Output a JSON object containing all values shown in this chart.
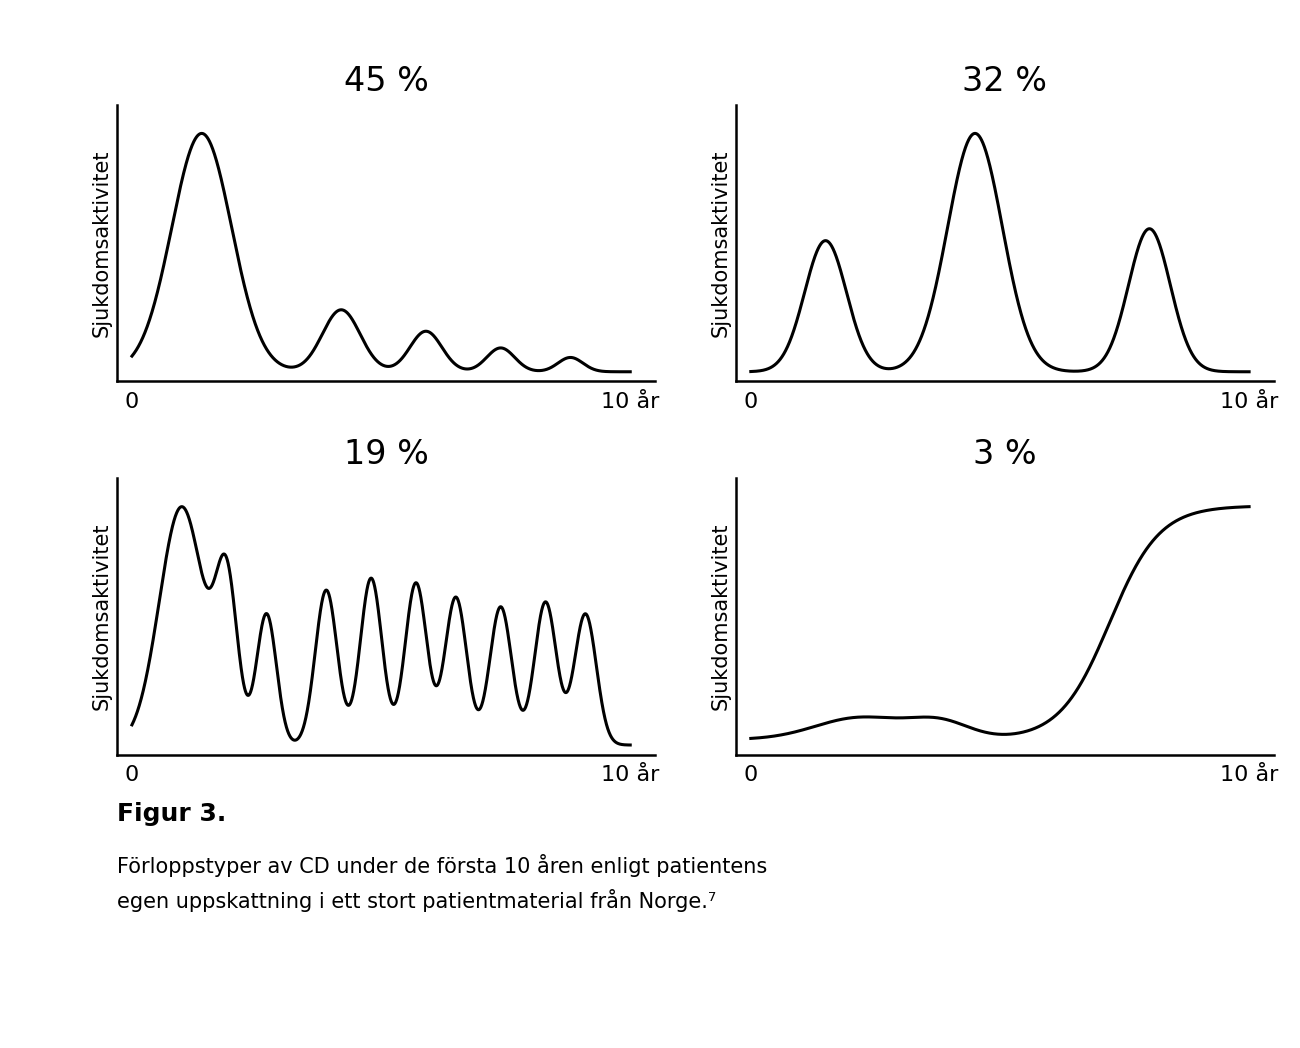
{
  "title_fontsize": 24,
  "ylabel_fontsize": 15,
  "ylabel_text": "Sjukdomsaktivitet",
  "background_color": "#ffffff",
  "line_color": "#000000",
  "line_width": 2.2,
  "percentages": [
    "45 %",
    "32 %",
    "19 %",
    "3 %"
  ],
  "figur_title": "Figur 3.",
  "figur_caption": "Förloppstyper av CD under de första 10 åren enligt patientens\negen uppskattning i ett stort patientmaterial från Norge.⁷",
  "caption_fontsize": 15,
  "figur_title_fontsize": 18
}
